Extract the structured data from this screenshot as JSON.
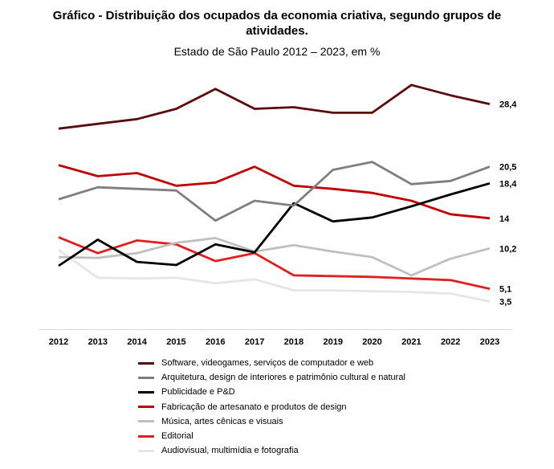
{
  "chart_data": {
    "type": "line",
    "title_lines": [
      "Gráfico - Distribuição dos ocupados da economia criativa, segundo grupos de",
      "atividades."
    ],
    "subtitle": "Estado de São Paulo 2012 – 2023, em %",
    "categories": [
      "2012",
      "2013",
      "2014",
      "2015",
      "2016",
      "2017",
      "2018",
      "2019",
      "2020",
      "2021",
      "2022",
      "2023"
    ],
    "ylim": [
      0,
      32
    ],
    "grid": false,
    "series": [
      {
        "name": "Software, videogames, serviços de computador e web",
        "color": "#5a0a0a",
        "end_label": "28,4",
        "values": [
          25.3,
          25.9,
          26.5,
          27.8,
          30.3,
          27.8,
          28.0,
          27.3,
          27.3,
          30.8,
          29.5,
          28.4
        ]
      },
      {
        "name": "Arquitetura, design de interiores e patrimônio cultural e natural",
        "color": "#7f7f7f",
        "end_label": "20,5",
        "values": [
          16.4,
          17.9,
          17.7,
          17.5,
          13.7,
          16.2,
          15.6,
          20.1,
          21.1,
          18.3,
          18.7,
          20.5
        ]
      },
      {
        "name": "Publicidade e P&D",
        "color": "#000000",
        "end_label": "18,4",
        "values": [
          8.0,
          11.3,
          8.5,
          8.1,
          10.7,
          9.7,
          15.9,
          13.6,
          14.1,
          15.5,
          17.0,
          18.4
        ]
      },
      {
        "name": "Fabricação de artesanato e produtos de design",
        "color": "#c00000",
        "end_label": "14",
        "values": [
          20.7,
          19.3,
          19.7,
          18.1,
          18.5,
          20.5,
          18.1,
          17.7,
          17.2,
          16.2,
          14.5,
          14.0
        ]
      },
      {
        "name": "Música, artes cênicas e visuais",
        "color": "#bfbfbf",
        "end_label": "10,2",
        "values": [
          9.1,
          9.0,
          9.6,
          10.9,
          11.5,
          9.8,
          10.6,
          9.8,
          9.1,
          6.8,
          8.9,
          10.2
        ]
      },
      {
        "name": "Editorial",
        "color": "#e11f1f",
        "end_label": "5,1",
        "values": [
          11.6,
          9.6,
          11.2,
          10.7,
          8.6,
          9.6,
          6.8,
          6.7,
          6.6,
          6.4,
          6.2,
          5.1
        ]
      },
      {
        "name": "Audiovisual, multimídia e fotografia",
        "color": "#e6e6e6",
        "end_label": "3,5",
        "values": [
          10.0,
          6.5,
          6.4,
          6.5,
          5.8,
          6.3,
          4.9,
          4.9,
          4.8,
          4.7,
          4.5,
          3.5
        ]
      }
    ]
  }
}
